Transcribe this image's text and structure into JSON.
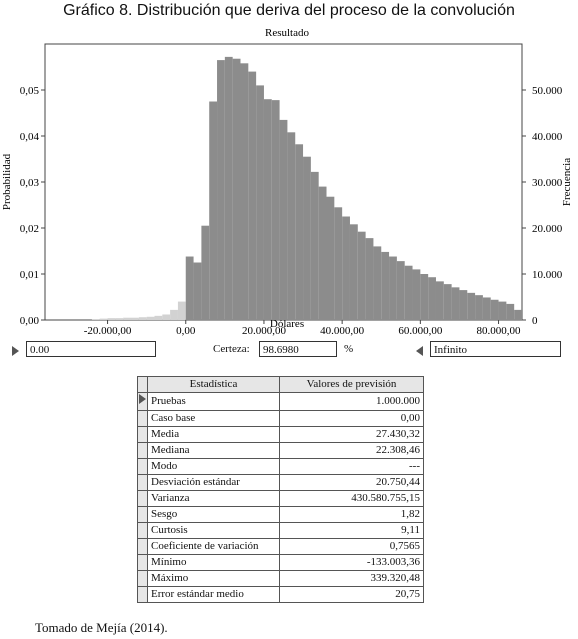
{
  "title": "Gráfico 8. Distribución que deriva del proceso de la convolución",
  "chart_data": {
    "type": "bar",
    "title": "Resultado",
    "xlabel": "Dólares",
    "ylabel_left": "Probabilidad",
    "ylabel_right": "Frecuencia",
    "xlim": [
      -36000,
      86000
    ],
    "ylim_left": [
      0,
      0.06
    ],
    "ylim_right": [
      0,
      60000
    ],
    "x_ticks": [
      -20000,
      0,
      20000,
      40000,
      60000,
      80000
    ],
    "x_tick_labels": [
      "-20.000,00",
      "0,00",
      "20.000,00",
      "40.000,00",
      "60.000,00",
      "80.000,00"
    ],
    "y_ticks_left": [
      0,
      0.01,
      0.02,
      0.03,
      0.04,
      0.05
    ],
    "y_tick_labels_left": [
      "0,00",
      "0,01",
      "0,02",
      "0,03",
      "0,04",
      "0,05"
    ],
    "y_ticks_right": [
      0,
      10000,
      20000,
      30000,
      40000,
      50000
    ],
    "y_tick_labels_right": [
      "0",
      "10.000",
      "20.000",
      "30.000",
      "40.000",
      "50.000"
    ],
    "bin_width": 2000,
    "bin_starts": [
      -24000,
      -22000,
      -20000,
      -18000,
      -16000,
      -14000,
      -12000,
      -10000,
      -8000,
      -6000,
      -4000,
      -2000,
      0,
      2000,
      4000,
      6000,
      8000,
      10000,
      12000,
      14000,
      16000,
      18000,
      20000,
      22000,
      24000,
      26000,
      28000,
      30000,
      32000,
      34000,
      36000,
      38000,
      40000,
      42000,
      44000,
      46000,
      48000,
      50000,
      52000,
      54000,
      56000,
      58000,
      60000,
      62000,
      64000,
      66000,
      68000,
      70000,
      72000,
      74000,
      76000,
      78000,
      80000,
      82000,
      84000
    ],
    "probability": [
      0.0002,
      0.0003,
      0.0004,
      0.0004,
      0.0005,
      0.0005,
      0.0006,
      0.0007,
      0.0009,
      0.0012,
      0.0022,
      0.004,
      0.0138,
      0.0125,
      0.0205,
      0.0475,
      0.0565,
      0.0572,
      0.0568,
      0.0558,
      0.054,
      0.051,
      0.048,
      0.0478,
      0.0435,
      0.0408,
      0.0382,
      0.0355,
      0.0322,
      0.029,
      0.0268,
      0.0245,
      0.0225,
      0.0208,
      0.0192,
      0.0178,
      0.016,
      0.0148,
      0.0138,
      0.0128,
      0.0118,
      0.011,
      0.01,
      0.0093,
      0.0084,
      0.0078,
      0.0071,
      0.0065,
      0.0059,
      0.0054,
      0.0049,
      0.0044,
      0.004,
      0.0035,
      0.0022
    ],
    "highlight_from": 0
  },
  "controls": {
    "left_value": "0.00",
    "certainty_label": "Certeza:",
    "certainty_value": "98.6980",
    "certainty_unit": "%",
    "right_value": "Infinito"
  },
  "stats_table": {
    "headers": [
      "Estadística",
      "Valores de previsión"
    ],
    "rows": [
      [
        "Pruebas",
        "1.000.000"
      ],
      [
        "Caso base",
        "0,00"
      ],
      [
        "Media",
        "27.430,32"
      ],
      [
        "Mediana",
        "22.308,46"
      ],
      [
        "Modo",
        "---"
      ],
      [
        "Desviación estándar",
        "20.750,44"
      ],
      [
        "Varianza",
        "430.580.755,15"
      ],
      [
        "Sesgo",
        "1,82"
      ],
      [
        "Curtosis",
        "9,11"
      ],
      [
        "Coeficiente de variación",
        "0,7565"
      ],
      [
        "Mínimo",
        "-133.003,36"
      ],
      [
        "Máximo",
        "339.320,48"
      ],
      [
        "Error estándar medio",
        "20,75"
      ]
    ]
  },
  "source": "Tomado de Mejía (2014).",
  "colors": {
    "bar_main": "#8c8c8c",
    "bar_tail": "#d2d2d2",
    "plot_bg": "#ffffff"
  }
}
